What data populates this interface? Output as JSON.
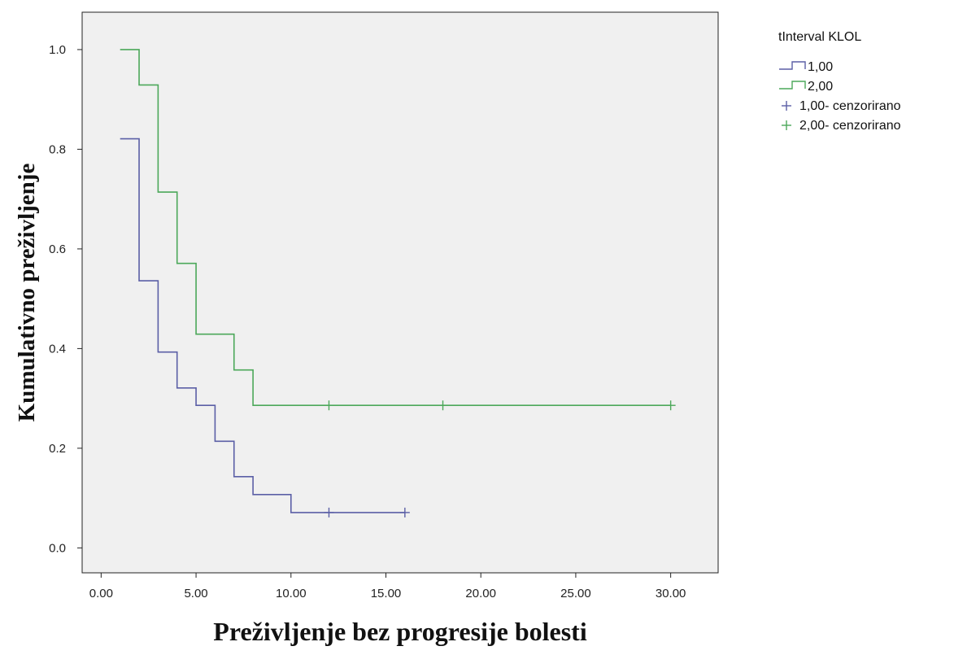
{
  "chart_data": {
    "type": "line",
    "subtype": "kaplan-meier-step",
    "xlabel": "Preživljenje bez progresije bolesti",
    "ylabel": "Kumulativno preživljenje",
    "xlim": [
      -1,
      32.5
    ],
    "ylim": [
      -0.05,
      1.075
    ],
    "x_ticks": [
      0,
      5,
      10,
      15,
      20,
      25,
      30
    ],
    "x_tick_labels": [
      "0.00",
      "5.00",
      "10.00",
      "15.00",
      "20.00",
      "25.00",
      "30.00"
    ],
    "y_ticks": [
      0,
      0.2,
      0.4,
      0.6,
      0.8,
      1.0
    ],
    "y_tick_labels": [
      "0.0",
      "0.2",
      "0.4",
      "0.6",
      "0.8",
      "1.0"
    ],
    "grid": false,
    "plot_background": "#f0f0f0",
    "legend": {
      "title": "tInterval KLOL",
      "position": "outside-top-right",
      "entries": [
        {
          "label": "1,00",
          "kind": "step",
          "color": "#5b5fa6"
        },
        {
          "label": "2,00",
          "kind": "step",
          "color": "#4ca85a"
        },
        {
          "label": "1,00- cenzorirano",
          "kind": "censor",
          "color": "#5b5fa6"
        },
        {
          "label": "2,00- cenzorirano",
          "kind": "censor",
          "color": "#4ca85a"
        }
      ]
    },
    "series": [
      {
        "name": "1,00",
        "color": "#5b5fa6",
        "steps": [
          [
            1,
            0.821
          ],
          [
            2,
            0.536
          ],
          [
            3,
            0.393
          ],
          [
            4,
            0.321
          ],
          [
            5,
            0.286
          ],
          [
            6,
            0.214
          ],
          [
            7,
            0.143
          ],
          [
            8,
            0.107
          ],
          [
            10,
            0.071
          ],
          [
            16,
            0.071
          ]
        ],
        "censored": [
          [
            12,
            0.071
          ],
          [
            16,
            0.071
          ]
        ]
      },
      {
        "name": "2,00",
        "color": "#4ca85a",
        "steps": [
          [
            1,
            1.0
          ],
          [
            2,
            0.929
          ],
          [
            3,
            0.714
          ],
          [
            4,
            0.571
          ],
          [
            5,
            0.429
          ],
          [
            7,
            0.357
          ],
          [
            8,
            0.286
          ],
          [
            30,
            0.286
          ]
        ],
        "censored": [
          [
            12,
            0.286
          ],
          [
            18,
            0.286
          ],
          [
            30,
            0.286
          ]
        ]
      }
    ]
  }
}
